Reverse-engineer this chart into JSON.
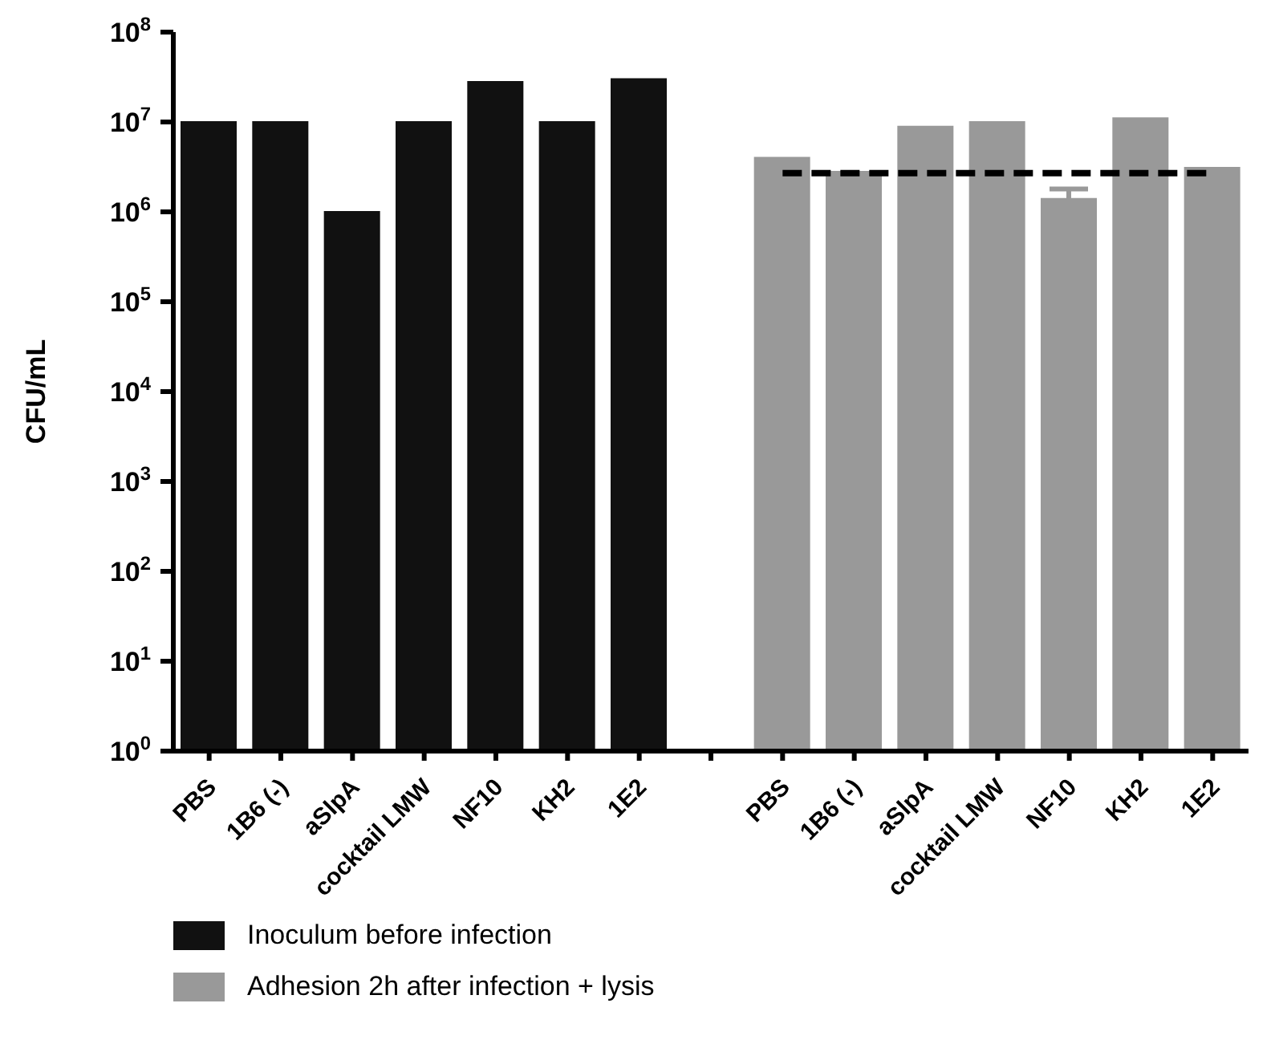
{
  "chart_data": {
    "type": "bar",
    "ylabel": "CFU/mL",
    "log": true,
    "ylim": [
      1,
      100000000
    ],
    "yticks": [
      {
        "value": 1,
        "label": "10$^{0}$"
      },
      {
        "value": 10,
        "label": "10$^{1}$"
      },
      {
        "value": 100,
        "label": "10$^{2}$"
      },
      {
        "value": 1000,
        "label": "10$^{3}$"
      },
      {
        "value": 10000,
        "label": "10$^{4}$"
      },
      {
        "value": 100000,
        "label": "10$^{5}$"
      },
      {
        "value": 1000000,
        "label": "10$^{6}$"
      },
      {
        "value": 10000000,
        "label": "10$^{7}$"
      },
      {
        "value": 100000000,
        "label": "10$^{8}$"
      }
    ],
    "categories": [
      "PBS",
      "1B6 (-)",
      "aSlpA",
      "cocktail LMW",
      "NF10",
      "KH2",
      "1E2",
      null,
      "PBS",
      "1B6 (-)",
      "aSlpA",
      "cocktail LMW",
      "NF10",
      "KH2",
      "1E2"
    ],
    "series": [
      {
        "name": "Inoculum before infection",
        "color": "#111111",
        "values": [
          10000000,
          10000000,
          1000000,
          10000000,
          28000000,
          10000000,
          30000000,
          null,
          null,
          null,
          null,
          null,
          null,
          null,
          null
        ]
      },
      {
        "name": "Adhesion 2h after infection + lysis",
        "color": "#999999",
        "values": [
          null,
          null,
          null,
          null,
          null,
          null,
          null,
          null,
          4000000,
          2800000,
          8900000,
          10000000,
          1400000,
          11000000,
          3100000
        ],
        "errors": [
          null,
          null,
          null,
          null,
          null,
          null,
          null,
          null,
          null,
          null,
          null,
          null,
          400000,
          null,
          null
        ]
      }
    ],
    "ref_lines": [
      {
        "axis": "y",
        "value": 2700000,
        "line_style": "dashed",
        "color": "#000000"
      }
    ],
    "legend": "bottom",
    "grid": false
  }
}
